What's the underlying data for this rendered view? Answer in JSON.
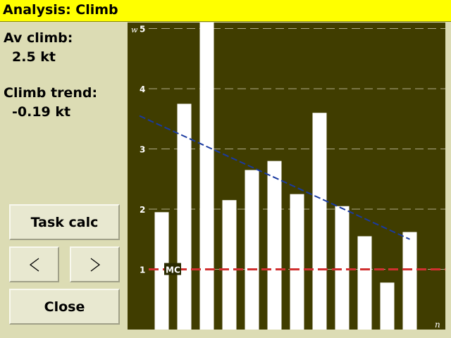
{
  "window": {
    "title": "Analysis: Climb"
  },
  "info": {
    "av_climb_label": "Av climb:",
    "av_climb_value": "2.5 kt",
    "climb_trend_label": "Climb trend:",
    "climb_trend_value": "-0.19 kt"
  },
  "buttons": {
    "task_calc": "Task calc",
    "prev_icon": "chevron-left-icon",
    "next_icon": "chevron-right-icon",
    "close": "Close"
  },
  "chart_data": {
    "type": "bar",
    "ylabel": "w",
    "xlabel": "n",
    "ylim": [
      0,
      5.1
    ],
    "yticks": [
      1,
      2,
      3,
      4,
      5
    ],
    "values": [
      1.95,
      3.75,
      5.1,
      2.15,
      2.65,
      2.8,
      2.25,
      3.6,
      2.05,
      1.55,
      0.78,
      1.62
    ],
    "trend": {
      "start": 3.55,
      "end": 1.5,
      "color": "#1a3aa0"
    },
    "mc": {
      "label": "MC",
      "value": 1.0,
      "color": "#d03030"
    },
    "colors": {
      "background": "#403d00",
      "bars": "#ffffff",
      "grid": "#b0ab88"
    }
  }
}
